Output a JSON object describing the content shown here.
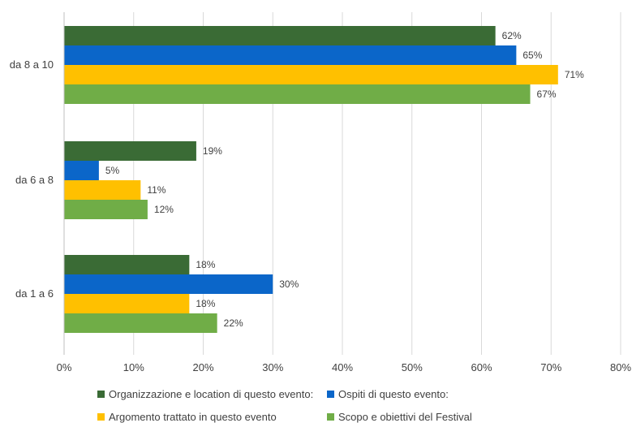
{
  "chart_data": {
    "type": "bar",
    "orientation": "horizontal",
    "categories": [
      "da 8 a 10",
      "da 6 a 8",
      "da 1 a 6"
    ],
    "series": [
      {
        "name": "Organizzazione e location di questo evento:",
        "color": "#3a6b35",
        "values": [
          62,
          19,
          18
        ],
        "labels": [
          "62%",
          "19%",
          "18%"
        ]
      },
      {
        "name": "Ospiti di questo evento:",
        "color": "#0b66c9",
        "values": [
          65,
          5,
          30
        ],
        "labels": [
          "65%",
          "5%",
          "30%"
        ]
      },
      {
        "name": "Argomento trattato in questo evento",
        "color": "#ffc000",
        "values": [
          71,
          11,
          18
        ],
        "labels": [
          "71%",
          "11%",
          "18%"
        ]
      },
      {
        "name": "Scopo e obiettivi del Festival",
        "color": "#70ad47",
        "values": [
          67,
          12,
          22
        ],
        "labels": [
          "67%",
          "12%",
          "22%"
        ]
      }
    ],
    "xlim": [
      0,
      80
    ],
    "xticks": [
      "0%",
      "10%",
      "20%",
      "30%",
      "40%",
      "50%",
      "60%",
      "70%",
      "80%"
    ],
    "grid": true,
    "legend_position": "bottom",
    "title": "",
    "xlabel": "",
    "ylabel": ""
  }
}
